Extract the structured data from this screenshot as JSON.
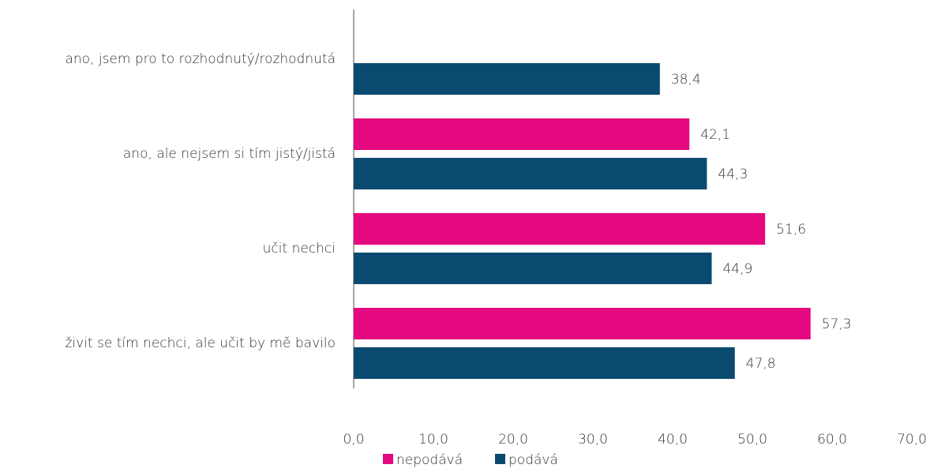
{
  "chart_data": {
    "type": "hbar",
    "categories": [
      "ano, jsem pro to rozhodnutý/rozhodnutá",
      "ano, ale nejsem si tím jistý/jistá",
      "učit nechci",
      "živit se tím nechci, ale učit by mě bavilo"
    ],
    "series": [
      {
        "name": "nepodává",
        "color": "#e5097f",
        "values": [
          null,
          42.1,
          51.6,
          57.3
        ],
        "value_labels": [
          null,
          "42,1",
          "51,6",
          "57,3"
        ]
      },
      {
        "name": "podává",
        "color": "#0b4a70",
        "values": [
          38.4,
          44.3,
          44.9,
          47.8
        ],
        "value_labels": [
          "38,4",
          "44,3",
          "44,9",
          "47,8"
        ]
      }
    ],
    "xlim": [
      0,
      70
    ],
    "xticks": [
      {
        "value": 0,
        "label": "0,0"
      },
      {
        "value": 10,
        "label": "10,0"
      },
      {
        "value": 20,
        "label": "20,0"
      },
      {
        "value": 30,
        "label": "30,0"
      },
      {
        "value": 40,
        "label": "40,0"
      },
      {
        "value": 50,
        "label": "50,0"
      },
      {
        "value": 60,
        "label": "60,0"
      },
      {
        "value": 70,
        "label": "70,0"
      }
    ],
    "legend": "bottom"
  }
}
